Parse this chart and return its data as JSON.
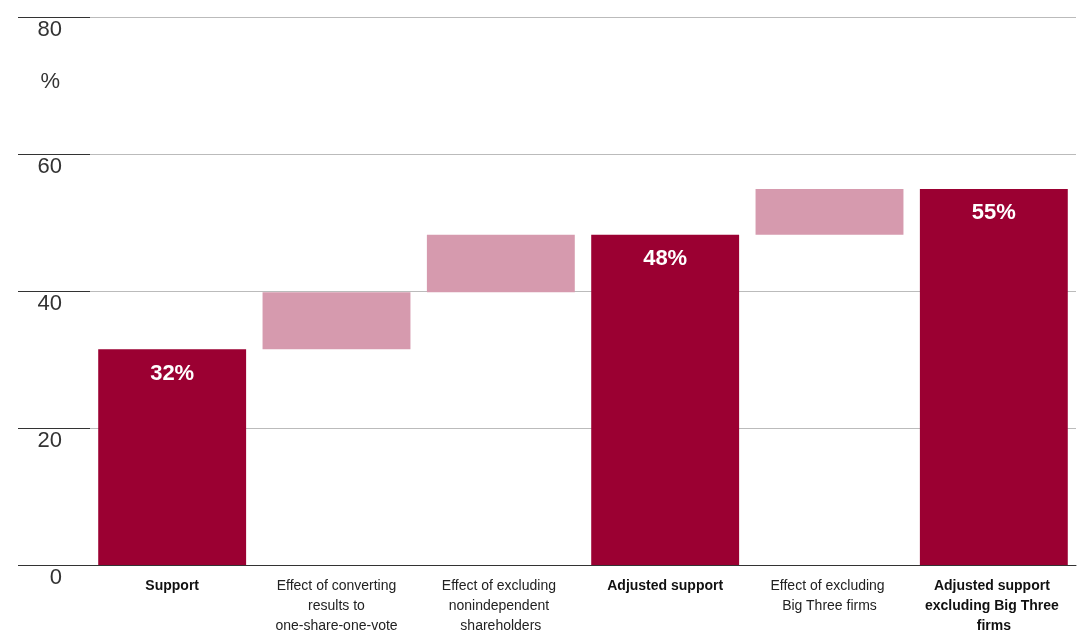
{
  "chart_data": {
    "type": "bar",
    "ylabel": "%",
    "categories": [
      "Support",
      "Effect of converting results to one-share-one-vote",
      "Effect of excluding nonindependent shareholders",
      "Adjusted support",
      "Effect of excluding Big Three firms",
      "Adjusted support excluding Big Three firms"
    ],
    "base": [
      0,
      31.5,
      39.8,
      0,
      48.2,
      0
    ],
    "values": [
      31.5,
      8.3,
      8.4,
      48.2,
      6.7,
      54.9
    ],
    "colors": [
      "#9b0032",
      "#d69aae",
      "#d69aae",
      "#9b0032",
      "#d69aae",
      "#9b0032"
    ],
    "value_labels": [
      "32%",
      null,
      null,
      "48%",
      null,
      "55%"
    ],
    "ylim": [
      0,
      80
    ],
    "yticks": [
      0,
      20,
      40,
      60,
      80
    ],
    "grid": "y"
  }
}
